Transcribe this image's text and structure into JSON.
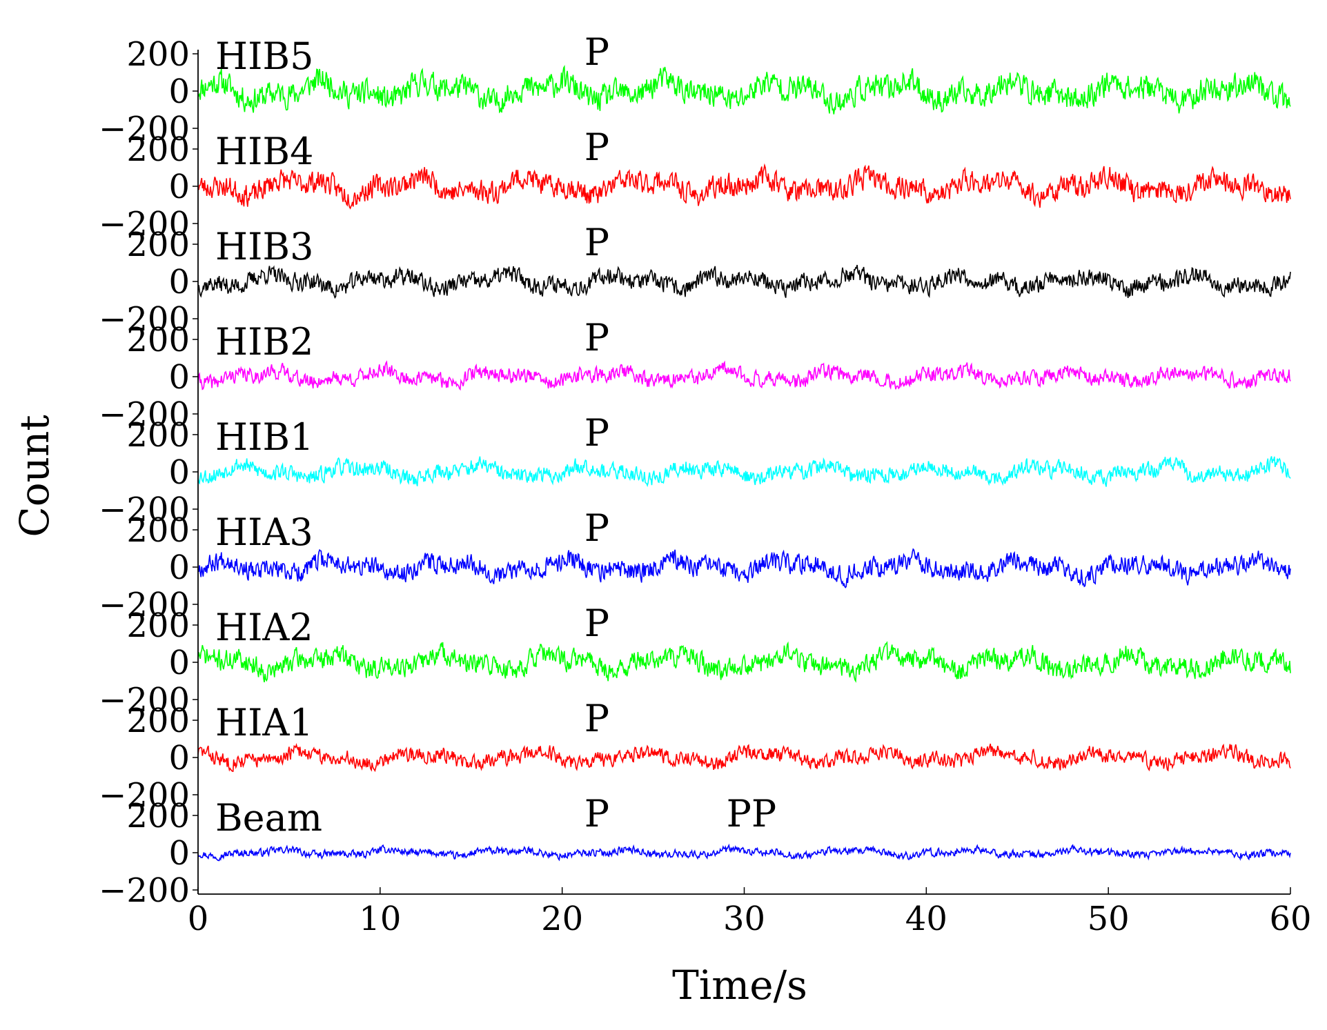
{
  "chart_data": {
    "type": "line",
    "xlabel": "Time/s",
    "ylabel": "Count",
    "xlim": [
      0,
      60
    ],
    "x_ticks": [
      "0",
      "10",
      "20",
      "30",
      "40",
      "50",
      "60"
    ],
    "y_ticks": [
      "200",
      "0",
      "−200"
    ],
    "ylim_per_trace": [
      -200,
      200
    ],
    "sample_count": 1500,
    "series": [
      {
        "name": "HIB5",
        "color": "#00ff00",
        "amp": 85,
        "seed": 11,
        "phase_labels": [
          {
            "text": "P",
            "x": 21.9
          }
        ]
      },
      {
        "name": "HIB4",
        "color": "#ff0000",
        "amp": 75,
        "seed": 23,
        "phase_labels": [
          {
            "text": "P",
            "x": 21.9
          }
        ]
      },
      {
        "name": "HIB3",
        "color": "#000000",
        "amp": 60,
        "seed": 37,
        "phase_labels": [
          {
            "text": "P",
            "x": 21.9
          }
        ]
      },
      {
        "name": "HIB2",
        "color": "#ff00ff",
        "amp": 50,
        "seed": 41,
        "phase_labels": [
          {
            "text": "P",
            "x": 21.9
          }
        ]
      },
      {
        "name": "HIB1",
        "color": "#00ffff",
        "amp": 55,
        "seed": 53,
        "phase_labels": [
          {
            "text": "P",
            "x": 21.9
          }
        ]
      },
      {
        "name": "HIA3",
        "color": "#0000ff",
        "amp": 65,
        "seed": 67,
        "phase_labels": [
          {
            "text": "P",
            "x": 21.9
          }
        ]
      },
      {
        "name": "HIA2",
        "color": "#00ff00",
        "amp": 70,
        "seed": 71,
        "phase_labels": [
          {
            "text": "P",
            "x": 21.9
          }
        ]
      },
      {
        "name": "HIA1",
        "color": "#ff0000",
        "amp": 50,
        "seed": 83,
        "phase_labels": [
          {
            "text": "P",
            "x": 21.9
          }
        ]
      },
      {
        "name": "Beam",
        "color": "#0000ff",
        "amp": 25,
        "seed": 97,
        "phase_labels": [
          {
            "text": "P",
            "x": 21.9
          },
          {
            "text": "PP",
            "x": 29.7
          }
        ]
      }
    ]
  }
}
